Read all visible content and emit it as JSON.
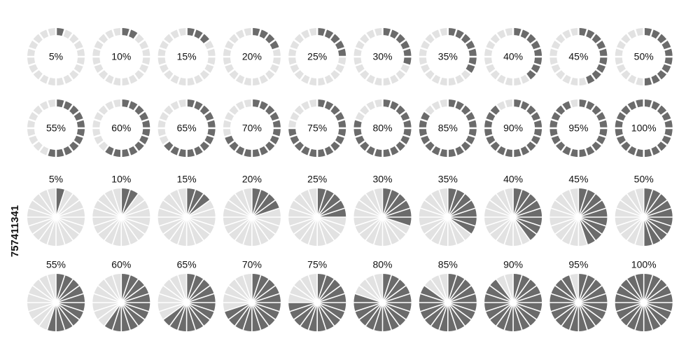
{
  "side_label": "757411341",
  "chart_data": [
    {
      "type": "donut",
      "values": [
        5
      ],
      "value_labels": [
        "5%"
      ]
    },
    {
      "type": "donut",
      "values": [
        10
      ],
      "value_labels": [
        "10%"
      ]
    },
    {
      "type": "donut",
      "values": [
        15
      ],
      "value_labels": [
        "15%"
      ]
    },
    {
      "type": "donut",
      "values": [
        20
      ],
      "value_labels": [
        "20%"
      ]
    },
    {
      "type": "donut",
      "values": [
        25
      ],
      "value_labels": [
        "25%"
      ]
    },
    {
      "type": "donut",
      "values": [
        30
      ],
      "value_labels": [
        "30%"
      ]
    },
    {
      "type": "donut",
      "values": [
        35
      ],
      "value_labels": [
        "35%"
      ]
    },
    {
      "type": "donut",
      "values": [
        40
      ],
      "value_labels": [
        "40%"
      ]
    },
    {
      "type": "donut",
      "values": [
        45
      ],
      "value_labels": [
        "45%"
      ]
    },
    {
      "type": "donut",
      "values": [
        50
      ],
      "value_labels": [
        "50%"
      ]
    },
    {
      "type": "donut",
      "values": [
        55
      ],
      "value_labels": [
        "55%"
      ]
    },
    {
      "type": "donut",
      "values": [
        60
      ],
      "value_labels": [
        "60%"
      ]
    },
    {
      "type": "donut",
      "values": [
        65
      ],
      "value_labels": [
        "65%"
      ]
    },
    {
      "type": "donut",
      "values": [
        70
      ],
      "value_labels": [
        "70%"
      ]
    },
    {
      "type": "donut",
      "values": [
        75
      ],
      "value_labels": [
        "75%"
      ]
    },
    {
      "type": "donut",
      "values": [
        80
      ],
      "value_labels": [
        "80%"
      ]
    },
    {
      "type": "donut",
      "values": [
        85
      ],
      "value_labels": [
        "85%"
      ]
    },
    {
      "type": "donut",
      "values": [
        90
      ],
      "value_labels": [
        "90%"
      ]
    },
    {
      "type": "donut",
      "values": [
        95
      ],
      "value_labels": [
        "95%"
      ]
    },
    {
      "type": "donut",
      "values": [
        100
      ],
      "value_labels": [
        "100%"
      ]
    },
    {
      "type": "pie",
      "values": [
        5
      ],
      "value_labels": [
        "5%"
      ]
    },
    {
      "type": "pie",
      "values": [
        10
      ],
      "value_labels": [
        "10%"
      ]
    },
    {
      "type": "pie",
      "values": [
        15
      ],
      "value_labels": [
        "15%"
      ]
    },
    {
      "type": "pie",
      "values": [
        20
      ],
      "value_labels": [
        "20%"
      ]
    },
    {
      "type": "pie",
      "values": [
        25
      ],
      "value_labels": [
        "25%"
      ]
    },
    {
      "type": "pie",
      "values": [
        30
      ],
      "value_labels": [
        "30%"
      ]
    },
    {
      "type": "pie",
      "values": [
        35
      ],
      "value_labels": [
        "35%"
      ]
    },
    {
      "type": "pie",
      "values": [
        40
      ],
      "value_labels": [
        "40%"
      ]
    },
    {
      "type": "pie",
      "values": [
        45
      ],
      "value_labels": [
        "45%"
      ]
    },
    {
      "type": "pie",
      "values": [
        50
      ],
      "value_labels": [
        "50%"
      ]
    },
    {
      "type": "pie",
      "values": [
        55
      ],
      "value_labels": [
        "55%"
      ]
    },
    {
      "type": "pie",
      "values": [
        60
      ],
      "value_labels": [
        "60%"
      ]
    },
    {
      "type": "pie",
      "values": [
        65
      ],
      "value_labels": [
        "65%"
      ]
    },
    {
      "type": "pie",
      "values": [
        70
      ],
      "value_labels": [
        "70%"
      ]
    },
    {
      "type": "pie",
      "values": [
        75
      ],
      "value_labels": [
        "75%"
      ]
    },
    {
      "type": "pie",
      "values": [
        80
      ],
      "value_labels": [
        "80%"
      ]
    },
    {
      "type": "pie",
      "values": [
        85
      ],
      "value_labels": [
        "85%"
      ]
    },
    {
      "type": "pie",
      "values": [
        90
      ],
      "value_labels": [
        "90%"
      ]
    },
    {
      "type": "pie",
      "values": [
        95
      ],
      "value_labels": [
        "95%"
      ]
    },
    {
      "type": "pie",
      "values": [
        100
      ],
      "value_labels": [
        "100%"
      ]
    }
  ]
}
